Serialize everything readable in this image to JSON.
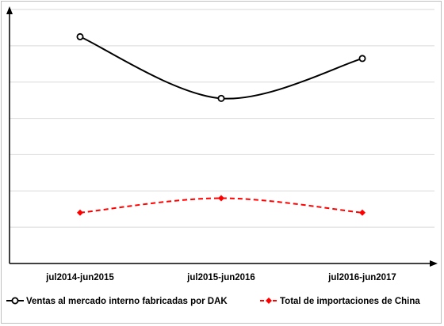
{
  "chart_data": {
    "type": "line",
    "title": "",
    "xlabel": "",
    "ylabel": "",
    "categories": [
      "jul2014-jun2015",
      "jul2015-jun2016",
      "jul2016-jun2017"
    ],
    "y_tick_labels_shown": false,
    "ylim": [
      0,
      7
    ],
    "grid": true,
    "legend_position": "bottom",
    "series": [
      {
        "name": "Ventas al mercado interno fabricadas por DAK",
        "values": [
          6.25,
          4.55,
          5.65
        ],
        "color": "#000000",
        "line_style": "solid",
        "marker": "open-circle",
        "smooth": true
      },
      {
        "name": "Total de importaciones de China",
        "values": [
          1.4,
          1.8,
          1.4
        ],
        "color": "#ff0000",
        "line_style": "dashed",
        "marker": "diamond",
        "smooth": true
      }
    ]
  }
}
